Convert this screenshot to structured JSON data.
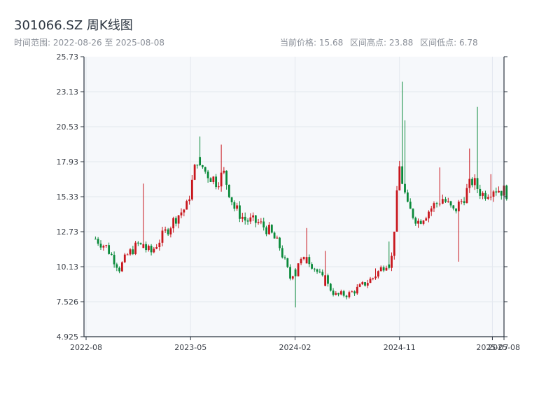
{
  "header": {
    "title": "301066.SZ 周K线图",
    "range_text": "时间范围: 2022-08-26 至 2025-08-08",
    "current_price": "当前价格: 15.68",
    "high": "区间高点: 23.88",
    "low": "区间低点: 6.78"
  },
  "colors": {
    "up": "#c8161d",
    "down": "#0a8a3a",
    "plot_bg": "#f6f8fb",
    "grid": "#e3e7ee",
    "axis": "#2b3440"
  },
  "chart_data": {
    "type": "candlestick",
    "title": "301066.SZ 周K线图",
    "xlabel": "",
    "ylabel": "",
    "ylim": [
      4.925,
      25.73
    ],
    "xlim": [
      "2022-08",
      "2025-08"
    ],
    "y_ticks": [
      "4.925",
      "7.526",
      "10.13",
      "12.73",
      "15.33",
      "17.93",
      "20.53",
      "23.13",
      "25.73"
    ],
    "x_ticks": [
      {
        "label": "2022-08",
        "month": 0
      },
      {
        "label": "2023-05",
        "month": 9
      },
      {
        "label": "2024-02",
        "month": 18
      },
      {
        "label": "2024-11",
        "month": 27
      },
      {
        "label": "2025-07",
        "month": 35
      },
      {
        "label": "2025-08",
        "month": 36
      }
    ],
    "grid": true,
    "legend": "none",
    "anchors": [
      [
        "2022-08-26",
        12.2
      ],
      [
        "2022-09-23",
        11.6
      ],
      [
        "2022-10-28",
        10.0
      ],
      [
        "2022-11-18",
        11.0
      ],
      [
        "2022-12-16",
        11.8
      ],
      [
        "2023-01-20",
        11.2
      ],
      [
        "2023-02-17",
        12.4
      ],
      [
        "2023-03-24",
        13.8
      ],
      [
        "2023-04-21",
        14.6
      ],
      [
        "2023-05-19",
        18.2
      ],
      [
        "2023-06-09",
        17.2
      ],
      [
        "2023-07-07",
        16.5
      ],
      [
        "2023-07-28",
        17.0
      ],
      [
        "2023-08-25",
        14.5
      ],
      [
        "2023-09-22",
        13.6
      ],
      [
        "2023-10-27",
        13.4
      ],
      [
        "2023-11-24",
        12.8
      ],
      [
        "2023-12-22",
        11.6
      ],
      [
        "2024-01-19",
        9.3
      ],
      [
        "2024-02-09",
        10.5
      ],
      [
        "2024-03-08",
        10.6
      ],
      [
        "2024-04-12",
        9.2
      ],
      [
        "2024-05-17",
        8.0
      ],
      [
        "2024-06-21",
        8.1
      ],
      [
        "2024-07-19",
        8.6
      ],
      [
        "2024-08-23",
        9.3
      ],
      [
        "2024-09-20",
        10.2
      ],
      [
        "2024-10-11",
        10.8
      ],
      [
        "2024-11-01",
        17.5
      ],
      [
        "2024-11-22",
        14.5
      ],
      [
        "2024-12-20",
        13.5
      ],
      [
        "2025-01-24",
        14.5
      ],
      [
        "2025-02-21",
        15.2
      ],
      [
        "2025-03-21",
        14.2
      ],
      [
        "2025-04-11",
        15.0
      ],
      [
        "2025-05-09",
        16.5
      ],
      [
        "2025-06-06",
        15.5
      ],
      [
        "2025-07-04",
        16.0
      ],
      [
        "2025-08-08",
        15.68
      ]
    ],
    "spikes": [
      [
        "2022-12-30",
        16.3,
        "up"
      ],
      [
        "2023-05-26",
        19.8,
        "down"
      ],
      [
        "2023-07-21",
        19.2,
        "up"
      ],
      [
        "2024-02-02",
        7.1,
        "down"
      ],
      [
        "2024-03-01",
        13.0,
        "up"
      ],
      [
        "2024-04-19",
        11.3,
        "up"
      ],
      [
        "2024-08-30",
        10.0,
        "up"
      ],
      [
        "2024-10-04",
        12.0,
        "down"
      ],
      [
        "2024-10-25",
        13.0,
        "up"
      ],
      [
        "2024-11-08",
        23.88,
        "down"
      ],
      [
        "2024-11-15",
        21.0,
        "down"
      ],
      [
        "2025-02-14",
        17.5,
        "up"
      ],
      [
        "2025-04-04",
        10.5,
        "up"
      ],
      [
        "2025-05-02",
        18.9,
        "up"
      ],
      [
        "2025-05-23",
        22.0,
        "down"
      ],
      [
        "2025-06-27",
        17.0,
        "up"
      ]
    ]
  }
}
